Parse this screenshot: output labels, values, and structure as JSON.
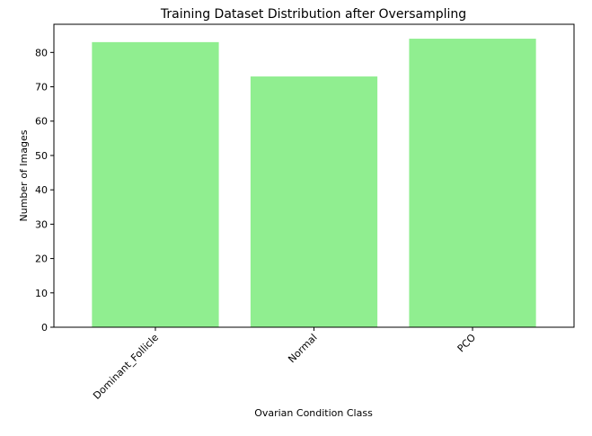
{
  "chart_data": {
    "type": "bar",
    "title": "Training Dataset Distribution after Oversampling",
    "xlabel": "Ovarian Condition Class",
    "ylabel": "Number of Images",
    "categories": [
      "Dominant_Follicle",
      "Normal",
      "PCO"
    ],
    "values": [
      83,
      73,
      84
    ],
    "ylim": [
      0,
      88.2
    ],
    "yticks": [
      0,
      10,
      20,
      30,
      40,
      50,
      60,
      70,
      80
    ],
    "ytick_labels": [
      "0",
      "10",
      "20",
      "30",
      "40",
      "50",
      "60",
      "70",
      "80"
    ],
    "bar_color": "#90ee90",
    "grid": false,
    "legend": "none",
    "xtick_rotation_deg": 45
  }
}
